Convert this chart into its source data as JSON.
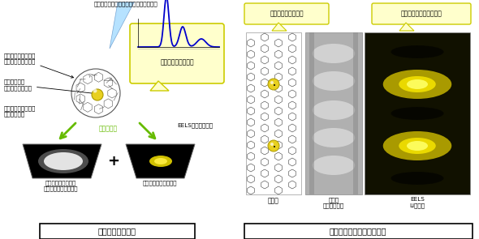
{
  "title_left": "今回開発した手法",
  "title_right": "実際のリチウム単原子観察",
  "label_top": "電子線（低加速でエネルギーを抑える）",
  "label_cage": "軽元素を守るケージ\n（フラーレンなど）",
  "label_target": "目的の軽元素\n（リチウムなど）",
  "label_tem": "従来の電子顕微鏡像\n（暗視野像）",
  "label_simultaneous": "同時に取得",
  "label_eels_image": "EELSによる原子像",
  "label_cage_only": "ケージのみが見える\n（軽元素は見えない）",
  "label_light_elem": "軽元素を可視化できる",
  "label_eels_signal": "各元素に特有の信号",
  "label_lithium_invisible": "リチウムは見えない",
  "label_position_clear": "位置がはっきりとわかる",
  "label_model": "モデル",
  "label_tem2": "従来の\n電子顕微鏡像",
  "label_eels_li": "EELS\nLi原子像",
  "bg_color": "#ffffff",
  "speech_bg": "#ffffcc",
  "arrow_green": "#66bb00",
  "electron_blue": "#aaddff",
  "graph_blue": "#0000cc",
  "cage_color": "#555555",
  "gold_color": "#ddcc00"
}
